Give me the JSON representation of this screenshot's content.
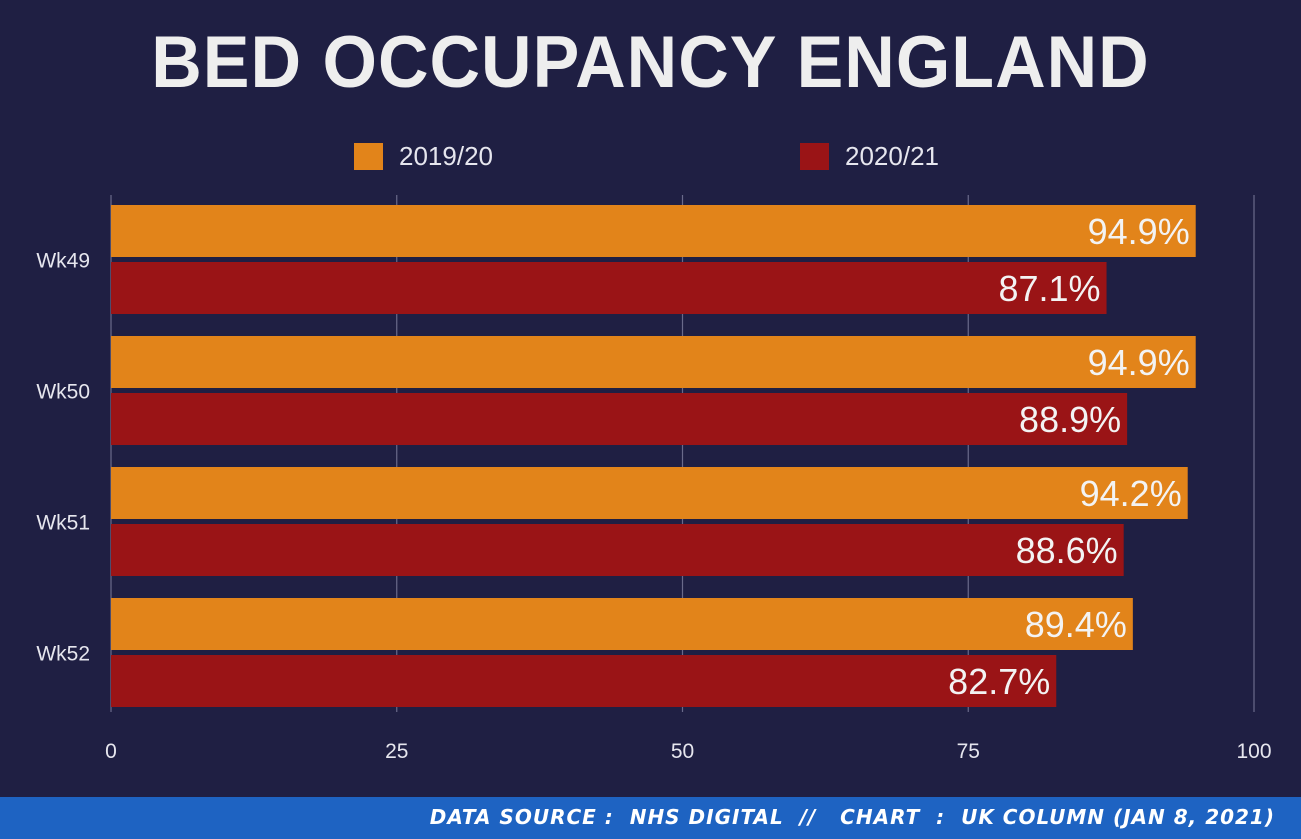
{
  "chart_data": {
    "type": "bar",
    "orientation": "horizontal",
    "title": "BED OCCUPANCY ENGLAND",
    "categories": [
      "Wk49",
      "Wk50",
      "Wk51",
      "Wk52"
    ],
    "series": [
      {
        "name": "2019/20",
        "color": "#e2841a",
        "values": [
          94.9,
          94.9,
          94.2,
          89.4
        ],
        "labels": [
          "94.9%",
          "94.9%",
          "94.2%",
          "89.4%"
        ]
      },
      {
        "name": "2020/21",
        "color": "#9a1416",
        "values": [
          87.1,
          88.9,
          88.6,
          82.7
        ],
        "labels": [
          "87.1%",
          "88.9%",
          "88.6%",
          "82.7%"
        ]
      }
    ],
    "xlim": [
      0,
      100
    ],
    "xticks": [
      0,
      25,
      50,
      75,
      100
    ],
    "grid": true,
    "legend": "top"
  },
  "footer": {
    "text": "DATA SOURCE :  NHS DIGITAL  //   CHART  :  UK COLUMN (JAN 8, 2021)"
  }
}
